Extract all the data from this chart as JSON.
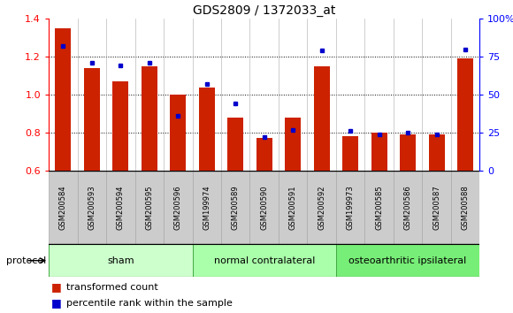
{
  "title": "GDS2809 / 1372033_at",
  "categories": [
    "GSM200584",
    "GSM200593",
    "GSM200594",
    "GSM200595",
    "GSM200596",
    "GSM199974",
    "GSM200589",
    "GSM200590",
    "GSM200591",
    "GSM200592",
    "GSM199973",
    "GSM200585",
    "GSM200586",
    "GSM200587",
    "GSM200588"
  ],
  "red_values": [
    1.35,
    1.14,
    1.07,
    1.15,
    1.0,
    1.04,
    0.88,
    0.77,
    0.88,
    1.15,
    0.78,
    0.8,
    0.79,
    0.79,
    1.19
  ],
  "blue_values": [
    82,
    71,
    69,
    71,
    36,
    57,
    44,
    22,
    27,
    79,
    26,
    24,
    25,
    24,
    80
  ],
  "ylim_left": [
    0.6,
    1.4
  ],
  "ylim_right": [
    0,
    100
  ],
  "yticks_left": [
    0.6,
    0.8,
    1.0,
    1.2,
    1.4
  ],
  "yticks_right": [
    0,
    25,
    50,
    75,
    100
  ],
  "ytick_labels_right": [
    "0",
    "25",
    "50",
    "75",
    "100%"
  ],
  "groups": [
    {
      "label": "sham",
      "start": 0,
      "end": 5,
      "color": "#ccffcc"
    },
    {
      "label": "normal contralateral",
      "start": 5,
      "end": 10,
      "color": "#aaffaa"
    },
    {
      "label": "osteoarthritic ipsilateral",
      "start": 10,
      "end": 15,
      "color": "#77ee77"
    }
  ],
  "bar_color": "#cc2200",
  "dot_color": "#0000cc",
  "bar_width": 0.55,
  "protocol_label": "protocol",
  "legend_red": "transformed count",
  "legend_blue": "percentile rank within the sample",
  "background_color": "#ffffff",
  "plot_bg": "#ffffff",
  "cat_label_bg": "#cccccc",
  "cat_label_border": "#aaaaaa"
}
